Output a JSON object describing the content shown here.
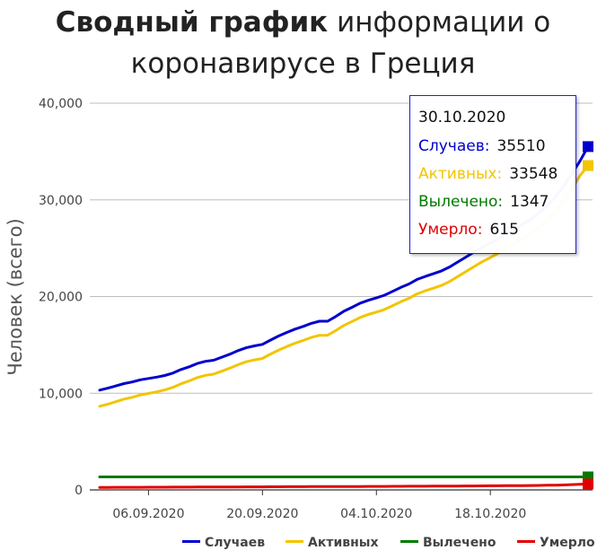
{
  "title": {
    "bold": "Сводный график",
    "rest": " информации о коронавирусе в Греция"
  },
  "chart_data": {
    "type": "line",
    "title": "Сводный график информации о коронавирусе в Греция",
    "ylabel": "Человек (всего)",
    "xlabel": "",
    "ylim": [
      0,
      40000
    ],
    "yticks": [
      0,
      10000,
      20000,
      30000,
      40000
    ],
    "ytick_labels": [
      "0",
      "10,000",
      "20,000",
      "30,000",
      "40,000"
    ],
    "xticks": [
      "06.09.2020",
      "20.09.2020",
      "04.10.2020",
      "18.10.2020"
    ],
    "x": [
      "31.08.2020",
      "01.09.2020",
      "02.09.2020",
      "03.09.2020",
      "04.09.2020",
      "05.09.2020",
      "06.09.2020",
      "07.09.2020",
      "08.09.2020",
      "09.09.2020",
      "10.09.2020",
      "11.09.2020",
      "12.09.2020",
      "13.09.2020",
      "14.09.2020",
      "15.09.2020",
      "16.09.2020",
      "17.09.2020",
      "18.09.2020",
      "19.09.2020",
      "20.09.2020",
      "21.09.2020",
      "22.09.2020",
      "23.09.2020",
      "24.09.2020",
      "25.09.2020",
      "26.09.2020",
      "27.09.2020",
      "28.09.2020",
      "29.09.2020",
      "30.09.2020",
      "01.10.2020",
      "02.10.2020",
      "03.10.2020",
      "04.10.2020",
      "05.10.2020",
      "06.10.2020",
      "07.10.2020",
      "08.10.2020",
      "09.10.2020",
      "10.10.2020",
      "11.10.2020",
      "12.10.2020",
      "13.10.2020",
      "14.10.2020",
      "15.10.2020",
      "16.10.2020",
      "17.10.2020",
      "18.10.2020",
      "19.10.2020",
      "20.10.2020",
      "21.10.2020",
      "22.10.2020",
      "23.10.2020",
      "24.10.2020",
      "25.10.2020",
      "26.10.2020",
      "27.10.2020",
      "28.10.2020",
      "29.10.2020",
      "30.10.2020"
    ],
    "series": [
      {
        "name": "Случаев",
        "color": "#0000cc",
        "values": [
          10317,
          10524,
          10757,
          10998,
          11165,
          11386,
          11524,
          11663,
          11832,
          12080,
          12452,
          12734,
          13072,
          13302,
          13410,
          13730,
          14041,
          14400,
          14700,
          14900,
          15050,
          15500,
          15928,
          16286,
          16627,
          16913,
          17228,
          17444,
          17448,
          17931,
          18475,
          18886,
          19313,
          19613,
          19870,
          20140,
          20541,
          20947,
          21299,
          21772,
          22078,
          22358,
          22652,
          23060,
          23569,
          24086,
          24600,
          25100,
          25528,
          26000,
          26500,
          27000,
          27500,
          28000,
          28700,
          29400,
          30300,
          31400,
          32700,
          34000,
          35510
        ]
      },
      {
        "name": "Активных",
        "color": "#f2c500",
        "values": [
          8650,
          8870,
          9120,
          9390,
          9580,
          9820,
          9980,
          10140,
          10340,
          10610,
          10980,
          11280,
          11620,
          11850,
          11970,
          12280,
          12600,
          12950,
          13250,
          13450,
          13600,
          14050,
          14470,
          14830,
          15170,
          15460,
          15770,
          15990,
          16000,
          16470,
          17010,
          17420,
          17840,
          18140,
          18390,
          18660,
          19060,
          19460,
          19810,
          20280,
          20590,
          20860,
          21150,
          21560,
          22070,
          22580,
          23100,
          23600,
          24030,
          24510,
          25010,
          25500,
          26000,
          26500,
          27200,
          27900,
          28800,
          29900,
          31100,
          32500,
          33548
        ]
      },
      {
        "name": "Вылечено",
        "color": "#007a00",
        "values": [
          1347,
          1347,
          1347,
          1347,
          1347,
          1347,
          1347,
          1347,
          1347,
          1347,
          1347,
          1347,
          1347,
          1347,
          1347,
          1347,
          1347,
          1347,
          1347,
          1347,
          1347,
          1347,
          1347,
          1347,
          1347,
          1347,
          1347,
          1347,
          1347,
          1347,
          1347,
          1347,
          1347,
          1347,
          1347,
          1347,
          1347,
          1347,
          1347,
          1347,
          1347,
          1347,
          1347,
          1347,
          1347,
          1347,
          1347,
          1347,
          1347,
          1347,
          1347,
          1347,
          1347,
          1347,
          1347,
          1347,
          1347,
          1347,
          1347,
          1347,
          1347
        ]
      },
      {
        "name": "Умерло",
        "color": "#e00000",
        "values": [
          262,
          264,
          266,
          268,
          271,
          273,
          276,
          279,
          282,
          285,
          289,
          291,
          293,
          295,
          297,
          300,
          304,
          308,
          312,
          316,
          320,
          324,
          327,
          330,
          333,
          336,
          339,
          342,
          345,
          348,
          351,
          354,
          357,
          360,
          363,
          366,
          369,
          372,
          376,
          380,
          384,
          388,
          392,
          396,
          401,
          406,
          411,
          417,
          423,
          429,
          436,
          443,
          450,
          458,
          467,
          478,
          491,
          513,
          545,
          580,
          615
        ]
      }
    ],
    "grid": true,
    "legend_placement": "bottom-right",
    "tooltip": {
      "date": "30.10.2020",
      "rows": [
        {
          "label": "Случаев:",
          "value": "35510",
          "color": "#0000cc"
        },
        {
          "label": "Активных:",
          "value": "33548",
          "color": "#f2c500"
        },
        {
          "label": "Вылечено:",
          "value": "1347",
          "color": "#007a00"
        },
        {
          "label": "Умерло:",
          "value": "615",
          "color": "#e00000"
        }
      ]
    }
  }
}
